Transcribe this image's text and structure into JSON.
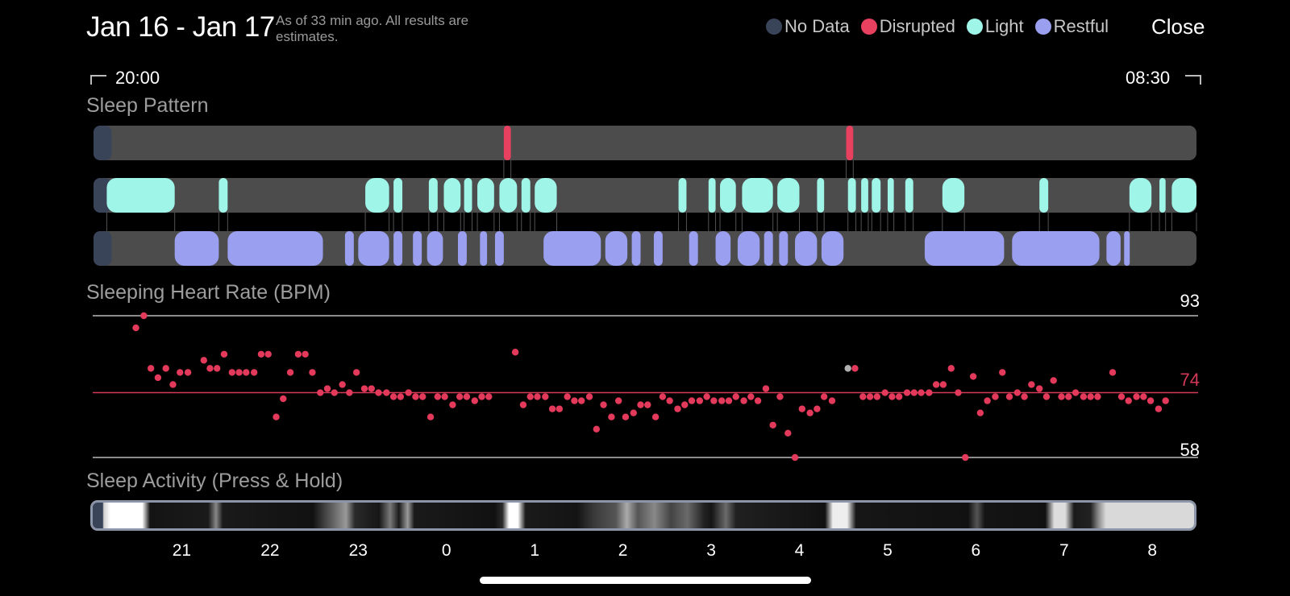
{
  "header": {
    "date_range": "Jan 16 - Jan 17",
    "as_of": "As of 33 min ago. All results are estimates.",
    "close_label": "Close"
  },
  "legend": [
    {
      "label": "No Data",
      "color": "#3a4458"
    },
    {
      "label": "Disrupted",
      "color": "#e8405f"
    },
    {
      "label": "Light",
      "color": "#9ff5e8"
    },
    {
      "label": "Restful",
      "color": "#9b9ff0"
    }
  ],
  "time_range": {
    "start": "20:00",
    "end": "08:30"
  },
  "sections": {
    "sleep_pattern": "Sleep Pattern",
    "heart_rate": "Sleeping Heart Rate (BPM)",
    "activity": "Sleep Activity (Press & Hold)"
  },
  "colors": {
    "track": "#4c4c4c",
    "no_data": "#3a4458",
    "disrupted": "#e8405f",
    "light": "#9ff5e8",
    "restful": "#9b9ff0",
    "hr_point": "#e3395b",
    "hr_outlier": "#b0b0b0"
  },
  "time_axis": {
    "start_hour": 20.0,
    "end_hour": 32.5
  },
  "sleep_pattern": {
    "no_data": [
      [
        20.0,
        20.15
      ]
    ],
    "disrupted": [
      [
        24.65,
        24.73
      ],
      [
        28.53,
        28.61
      ]
    ],
    "light": [
      [
        20.15,
        20.92
      ],
      [
        21.42,
        21.52
      ],
      [
        23.08,
        23.35
      ],
      [
        23.4,
        23.5
      ],
      [
        23.8,
        23.9
      ],
      [
        23.97,
        24.16
      ],
      [
        24.2,
        24.29
      ],
      [
        24.35,
        24.54
      ],
      [
        24.6,
        24.8
      ],
      [
        24.85,
        24.95
      ],
      [
        25.0,
        25.25
      ],
      [
        26.63,
        26.72
      ],
      [
        26.97,
        27.05
      ],
      [
        27.1,
        27.28
      ],
      [
        27.35,
        27.7
      ],
      [
        27.75,
        28.0
      ],
      [
        28.2,
        28.28
      ],
      [
        28.55,
        28.64
      ],
      [
        28.7,
        28.78
      ],
      [
        28.82,
        28.92
      ],
      [
        29.0,
        29.07
      ],
      [
        29.2,
        29.29
      ],
      [
        29.62,
        29.87
      ],
      [
        30.72,
        30.82
      ],
      [
        31.74,
        31.99
      ],
      [
        32.08,
        32.15
      ],
      [
        32.22,
        32.5
      ]
    ],
    "restful": [
      [
        20.92,
        21.42
      ],
      [
        21.52,
        22.6
      ],
      [
        22.85,
        22.95
      ],
      [
        23.0,
        23.35
      ],
      [
        23.4,
        23.5
      ],
      [
        23.62,
        23.72
      ],
      [
        23.78,
        23.96
      ],
      [
        24.13,
        24.23
      ],
      [
        24.38,
        24.46
      ],
      [
        24.55,
        24.65
      ],
      [
        25.1,
        25.75
      ],
      [
        25.8,
        26.05
      ],
      [
        26.1,
        26.2
      ],
      [
        26.35,
        26.45
      ],
      [
        26.75,
        26.85
      ],
      [
        27.05,
        27.22
      ],
      [
        27.3,
        27.55
      ],
      [
        27.6,
        27.7
      ],
      [
        27.77,
        27.87
      ],
      [
        27.95,
        28.2
      ],
      [
        28.25,
        28.5
      ],
      [
        29.42,
        30.32
      ],
      [
        30.41,
        31.4
      ],
      [
        31.48,
        31.64
      ],
      [
        31.68,
        31.74
      ]
    ]
  },
  "heart_rate": {
    "max_label": "93",
    "avg_label": "74",
    "min_label": "58",
    "y_min": 58,
    "y_max": 93,
    "avg": 74,
    "points": [
      [
        20.48,
        90.0
      ],
      [
        20.57,
        93.0
      ],
      [
        20.65,
        80.0
      ],
      [
        20.73,
        77.7
      ],
      [
        20.82,
        80.0
      ],
      [
        20.9,
        76.0
      ],
      [
        20.98,
        79.0
      ],
      [
        21.07,
        79.0
      ],
      [
        21.25,
        82.0
      ],
      [
        21.32,
        80.0
      ],
      [
        21.4,
        80.0
      ],
      [
        21.48,
        83.5
      ],
      [
        21.57,
        79.0
      ],
      [
        21.65,
        79.0
      ],
      [
        21.73,
        79.0
      ],
      [
        21.82,
        79.0
      ],
      [
        21.9,
        83.5
      ],
      [
        21.98,
        83.5
      ],
      [
        22.07,
        68.0
      ],
      [
        22.15,
        72.5
      ],
      [
        22.23,
        79.0
      ],
      [
        22.32,
        83.5
      ],
      [
        22.4,
        83.5
      ],
      [
        22.48,
        79.0
      ],
      [
        22.57,
        74.0
      ],
      [
        22.65,
        75.0
      ],
      [
        22.73,
        74.0
      ],
      [
        22.82,
        76.0
      ],
      [
        22.9,
        74.0
      ],
      [
        22.98,
        79.0
      ],
      [
        23.07,
        75.0
      ],
      [
        23.15,
        75.0
      ],
      [
        23.23,
        74.0
      ],
      [
        23.32,
        74.0
      ],
      [
        23.4,
        73.0
      ],
      [
        23.48,
        73.0
      ],
      [
        23.57,
        74.0
      ],
      [
        23.65,
        73.0
      ],
      [
        23.73,
        73.0
      ],
      [
        23.82,
        68.0
      ],
      [
        23.9,
        73.0
      ],
      [
        23.98,
        73.0
      ],
      [
        24.07,
        71.0
      ],
      [
        24.15,
        73.0
      ],
      [
        24.23,
        73.0
      ],
      [
        24.32,
        72.0
      ],
      [
        24.4,
        73.0
      ],
      [
        24.48,
        73.0
      ],
      [
        24.78,
        84.0
      ],
      [
        24.87,
        71.0
      ],
      [
        24.95,
        73.0
      ],
      [
        25.03,
        73.0
      ],
      [
        25.12,
        73.0
      ],
      [
        25.2,
        70.0
      ],
      [
        25.28,
        70.0
      ],
      [
        25.37,
        73.0
      ],
      [
        25.45,
        72.0
      ],
      [
        25.53,
        72.0
      ],
      [
        25.62,
        73.0
      ],
      [
        25.7,
        65.0
      ],
      [
        25.78,
        71.0
      ],
      [
        25.87,
        68.0
      ],
      [
        25.95,
        72.0
      ],
      [
        26.03,
        68.0
      ],
      [
        26.12,
        69.0
      ],
      [
        26.2,
        71.0
      ],
      [
        26.28,
        71.0
      ],
      [
        26.37,
        68.0
      ],
      [
        26.45,
        73.0
      ],
      [
        26.53,
        72.0
      ],
      [
        26.62,
        70.0
      ],
      [
        26.7,
        71.0
      ],
      [
        26.78,
        72.0
      ],
      [
        26.87,
        72.0
      ],
      [
        26.95,
        73.0
      ],
      [
        27.03,
        72.0
      ],
      [
        27.12,
        72.0
      ],
      [
        27.2,
        72.0
      ],
      [
        27.28,
        73.0
      ],
      [
        27.37,
        72.0
      ],
      [
        27.45,
        73.0
      ],
      [
        27.53,
        72.0
      ],
      [
        27.62,
        75.0
      ],
      [
        27.7,
        66.0
      ],
      [
        27.78,
        73.0
      ],
      [
        27.87,
        64.0
      ],
      [
        27.95,
        58.0
      ],
      [
        28.03,
        70.0
      ],
      [
        28.12,
        69.0
      ],
      [
        28.2,
        70.0
      ],
      [
        28.28,
        73.0
      ],
      [
        28.37,
        72.0
      ],
      [
        28.63,
        80.0
      ],
      [
        28.72,
        73.0
      ],
      [
        28.8,
        73.0
      ],
      [
        28.88,
        73.0
      ],
      [
        28.97,
        74.0
      ],
      [
        29.05,
        73.0
      ],
      [
        29.13,
        73.0
      ],
      [
        29.22,
        74.0
      ],
      [
        29.3,
        74.0
      ],
      [
        29.38,
        74.0
      ],
      [
        29.47,
        74.0
      ],
      [
        29.55,
        76.0
      ],
      [
        29.63,
        76.0
      ],
      [
        29.72,
        80.0
      ],
      [
        29.8,
        74.0
      ],
      [
        29.88,
        58.0
      ],
      [
        29.97,
        78.0
      ],
      [
        30.05,
        69.0
      ],
      [
        30.13,
        72.0
      ],
      [
        30.22,
        73.0
      ],
      [
        30.3,
        79.0
      ],
      [
        30.38,
        73.0
      ],
      [
        30.47,
        74.0
      ],
      [
        30.55,
        73.0
      ],
      [
        30.63,
        76.0
      ],
      [
        30.72,
        75.0
      ],
      [
        30.8,
        73.0
      ],
      [
        30.88,
        77.0
      ],
      [
        30.97,
        73.0
      ],
      [
        31.05,
        73.0
      ],
      [
        31.13,
        74.0
      ],
      [
        31.22,
        73.0
      ],
      [
        31.3,
        73.0
      ],
      [
        31.38,
        73.0
      ],
      [
        31.55,
        79.0
      ],
      [
        31.65,
        73.0
      ],
      [
        31.73,
        72.0
      ],
      [
        31.82,
        73.0
      ],
      [
        31.9,
        73.0
      ],
      [
        31.98,
        72.0
      ],
      [
        32.07,
        70.0
      ],
      [
        32.15,
        72.0
      ]
    ],
    "outliers": [
      [
        28.55,
        80.0
      ]
    ]
  },
  "activity": {
    "gradient": [
      [
        0,
        "#3a4458"
      ],
      [
        0.9,
        "#3a4458"
      ],
      [
        1.0,
        "#cfcfcf"
      ],
      [
        1.6,
        "#ffffff"
      ],
      [
        4.5,
        "#ffffff"
      ],
      [
        5.2,
        "#141414"
      ],
      [
        10.5,
        "#1a1a1a"
      ],
      [
        11.2,
        "#888888"
      ],
      [
        11.8,
        "#1a1a1a"
      ],
      [
        20,
        "#111111"
      ],
      [
        21.5,
        "#555555"
      ],
      [
        23,
        "#999999"
      ],
      [
        23.8,
        "#2a2a2a"
      ],
      [
        26,
        "#161616"
      ],
      [
        27,
        "#7a7a7a"
      ],
      [
        27.8,
        "#1a1a1a"
      ],
      [
        28.6,
        "#9a9a9a"
      ],
      [
        29.2,
        "#1a1a1a"
      ],
      [
        36.5,
        "#111111"
      ],
      [
        37.2,
        "#2a2a2a"
      ],
      [
        37.8,
        "#ffffff"
      ],
      [
        38.6,
        "#ffffff"
      ],
      [
        39.3,
        "#1a1a1a"
      ],
      [
        44,
        "#141414"
      ],
      [
        45.5,
        "#3a3a3a"
      ],
      [
        47.5,
        "#555555"
      ],
      [
        48.5,
        "#aaaaaa"
      ],
      [
        49.5,
        "#555555"
      ],
      [
        51,
        "#888888"
      ],
      [
        52.5,
        "#444444"
      ],
      [
        54,
        "#6a6a6a"
      ],
      [
        55.5,
        "#222222"
      ],
      [
        56.2,
        "#151515"
      ],
      [
        57.5,
        "#6a6a6a"
      ],
      [
        58.4,
        "#202020"
      ],
      [
        66.5,
        "#111111"
      ],
      [
        67.2,
        "#eeeeee"
      ],
      [
        68.5,
        "#eeeeee"
      ],
      [
        69.3,
        "#161616"
      ],
      [
        79.5,
        "#111111"
      ],
      [
        80.3,
        "#555555"
      ],
      [
        81,
        "#141414"
      ],
      [
        86.5,
        "#111111"
      ],
      [
        87.3,
        "#dddddd"
      ],
      [
        88.3,
        "#dddddd"
      ],
      [
        89.1,
        "#1a1a1a"
      ],
      [
        90.6,
        "#222222"
      ],
      [
        91.3,
        "#888888"
      ],
      [
        92.0,
        "#d8d9d8"
      ],
      [
        100,
        "#d8d9d8"
      ]
    ]
  },
  "axis": {
    "ticks": [
      {
        "hour": 21,
        "label": "21"
      },
      {
        "hour": 22,
        "label": "22"
      },
      {
        "hour": 23,
        "label": "23"
      },
      {
        "hour": 24,
        "label": "0"
      },
      {
        "hour": 25,
        "label": "1"
      },
      {
        "hour": 26,
        "label": "2"
      },
      {
        "hour": 27,
        "label": "3"
      },
      {
        "hour": 28,
        "label": "4"
      },
      {
        "hour": 29,
        "label": "5"
      },
      {
        "hour": 30,
        "label": "6"
      },
      {
        "hour": 31,
        "label": "7"
      },
      {
        "hour": 32,
        "label": "8"
      }
    ]
  }
}
